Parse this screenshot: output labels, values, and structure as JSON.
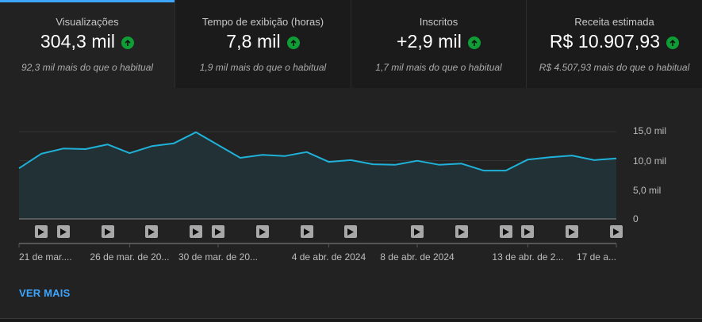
{
  "tabs": [
    {
      "label": "Visualizações",
      "value": "304,3 mil",
      "trend_icon": "arrow-up-circle-icon",
      "comparison": "92,3 mil mais do que o habitual",
      "active": true
    },
    {
      "label": "Tempo de exibição (horas)",
      "value": "7,8 mil",
      "trend_icon": "arrow-up-circle-icon",
      "comparison": "1,9 mil mais do que o habitual",
      "active": false
    },
    {
      "label": "Inscritos",
      "value": "+2,9 mil",
      "trend_icon": "arrow-up-circle-icon",
      "comparison": "1,7 mil mais do que o habitual",
      "active": false
    },
    {
      "label": "Receita estimada",
      "value": "R$ 10.907,93",
      "trend_icon": "arrow-up-circle-icon",
      "comparison": "R$ 4.507,93 mais do que o habitual",
      "active": false
    }
  ],
  "colors": {
    "accent": "#3ea6ff",
    "line": "#1fb1d8",
    "area_fill": "#213136",
    "trend_up": "#0f9d35",
    "panel_bg": "#222222",
    "tab_bg": "#1b1b1b"
  },
  "chart_data": {
    "type": "area",
    "title": "Visualizações",
    "xlabel": "",
    "ylabel": "",
    "ylim": [
      0,
      15000
    ],
    "y_axis_position": "right",
    "grid": true,
    "yticks": [
      {
        "value": 0,
        "label": "0"
      },
      {
        "value": 5000,
        "label": "5,0 mil"
      },
      {
        "value": 10000,
        "label": "10,0 mil"
      },
      {
        "value": 15000,
        "label": "15,0 mil"
      }
    ],
    "x_tick_labels": [
      {
        "index": 0,
        "label": "21 de mar...."
      },
      {
        "index": 5,
        "label": "26 de mar. de 20..."
      },
      {
        "index": 9,
        "label": "30 de mar. de 20..."
      },
      {
        "index": 14,
        "label": "4 de abr. de 2024"
      },
      {
        "index": 18,
        "label": "8 de abr. de 2024"
      },
      {
        "index": 23,
        "label": "13 de abr. de 2..."
      },
      {
        "index": 27,
        "label": "17 de a..."
      }
    ],
    "x": [
      "21 mar",
      "22 mar",
      "23 mar",
      "24 mar",
      "25 mar",
      "26 mar",
      "27 mar",
      "28 mar",
      "29 mar",
      "30 mar",
      "31 mar",
      "1 abr",
      "2 abr",
      "3 abr",
      "4 abr",
      "5 abr",
      "6 abr",
      "7 abr",
      "8 abr",
      "9 abr",
      "10 abr",
      "11 abr",
      "12 abr",
      "13 abr",
      "14 abr",
      "15 abr",
      "16 abr",
      "17 abr"
    ],
    "series": [
      {
        "name": "Visualizações",
        "values": [
          8700,
          11200,
          12100,
          12000,
          12800,
          11300,
          12500,
          13000,
          14900,
          12700,
          10500,
          11000,
          10800,
          11500,
          9800,
          10100,
          9400,
          9300,
          10000,
          9300,
          9500,
          8300,
          8300,
          10200,
          10600,
          10900,
          10100,
          10400
        ]
      }
    ],
    "video_markers_at_index": [
      1,
      2,
      4,
      6,
      8,
      9,
      11,
      13,
      15,
      18,
      20,
      22,
      23,
      25,
      27
    ]
  },
  "see_more": {
    "label": "VER MAIS"
  }
}
